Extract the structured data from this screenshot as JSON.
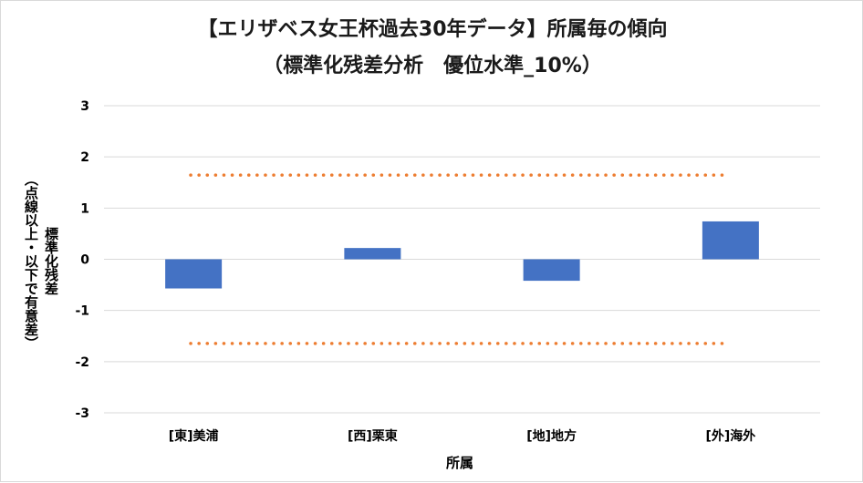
{
  "chart_data": {
    "type": "bar",
    "title_line1": "【エリザベス女王杯過去30年データ】所属毎の傾向",
    "title_line2": "（標準化残差分析　優位水準_10%）",
    "xlabel": "所属",
    "ylabel_line1": "標準化残差",
    "ylabel_line2": "（点線以上・以下で有意差）",
    "categories": [
      "[東]美浦",
      "[西]栗東",
      "[地]地方",
      "[外]海外"
    ],
    "values": [
      -0.57,
      0.22,
      -0.42,
      0.74
    ],
    "ylim": [
      -3,
      3
    ],
    "yticks": [
      "3",
      "2",
      "1",
      "0",
      "-1",
      "-2",
      "-3"
    ],
    "threshold_upper": 1.645,
    "threshold_lower": -1.645,
    "grid": true,
    "legend": "none",
    "colors": {
      "bar": "#4472c4",
      "threshold": "#ed7d31",
      "grid": "#d9d9d9",
      "text": "#000000"
    }
  }
}
